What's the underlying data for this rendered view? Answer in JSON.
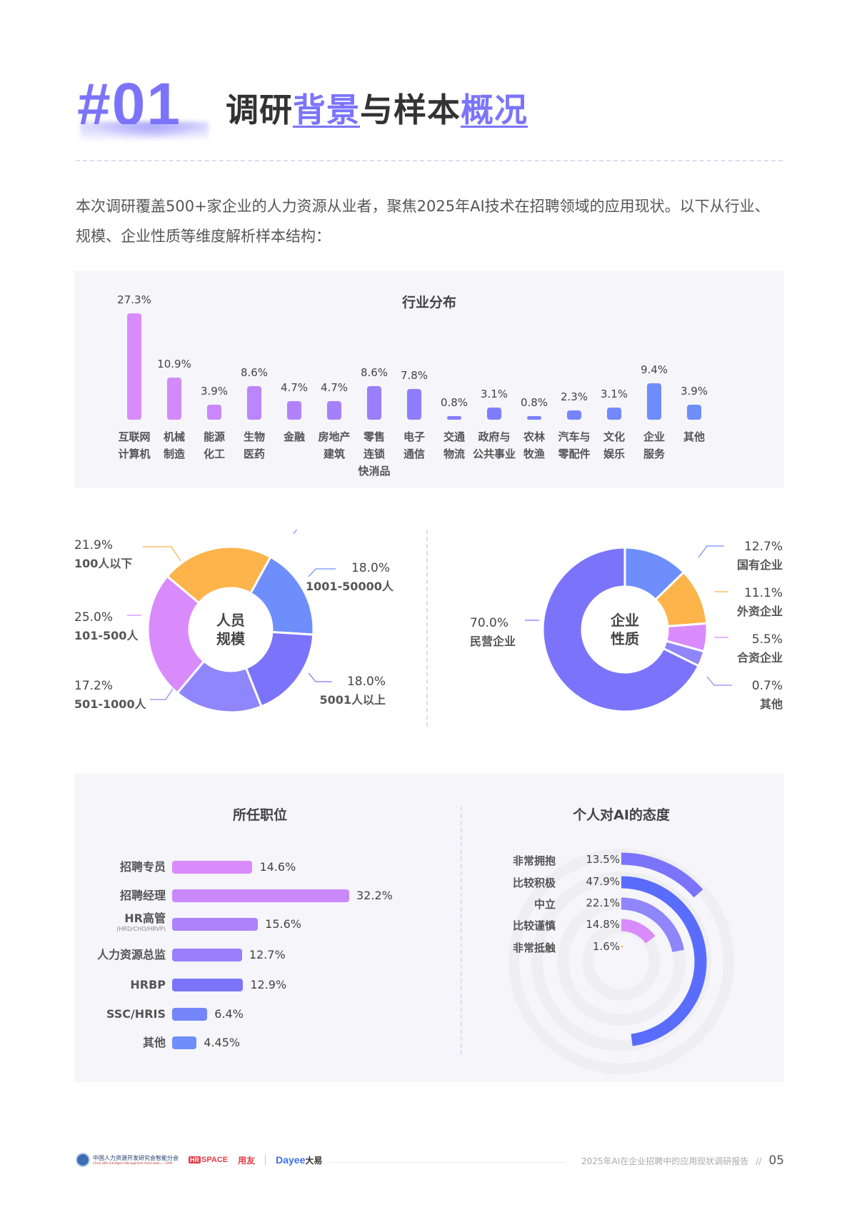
{
  "header": {
    "section_number": "#01",
    "title_parts": [
      "调研",
      "背景",
      "与样本",
      "概况"
    ]
  },
  "intro": "本次调研覆盖500+家企业的人力资源从业者，聚焦2025年AI技术在招聘领域的应用现状。以下从行业、规模、企业性质等维度解析样本结构：",
  "colors": {
    "accent": "#7b74fb",
    "pink": "#d98bfb",
    "orange": "#fdb44b",
    "blue": "#6e8ffb",
    "indigo": "#5a6cfb",
    "lavender": "#8f86fb",
    "panel_bg": "#f5f5fa"
  },
  "industry": {
    "title": "行业分布",
    "items": [
      {
        "label": "互联网\n计算机",
        "value": "27.3%"
      },
      {
        "label": "机械\n制造",
        "value": "10.9%"
      },
      {
        "label": "能源\n化工",
        "value": "3.9%"
      },
      {
        "label": "生物\n医药",
        "value": "8.6%"
      },
      {
        "label": "金融",
        "value": "4.7%"
      },
      {
        "label": "房地产\n建筑",
        "value": "4.7%"
      },
      {
        "label": "零售\n连锁\n快消品",
        "value": "8.6%"
      },
      {
        "label": "电子\n通信",
        "value": "7.8%"
      },
      {
        "label": "交通\n物流",
        "value": "0.8%"
      },
      {
        "label": "政府与\n公共事业",
        "value": "3.1%"
      },
      {
        "label": "农林\n牧渔",
        "value": "0.8%"
      },
      {
        "label": "汽车与\n零配件",
        "value": "2.3%"
      },
      {
        "label": "文化\n娱乐",
        "value": "3.1%"
      },
      {
        "label": "企业\n服务",
        "value": "9.4%"
      },
      {
        "label": "其他",
        "value": "3.9%"
      }
    ]
  },
  "staff_size": {
    "center": "人员\n规模",
    "items": [
      {
        "label": "100人以下",
        "value": "21.9%"
      },
      {
        "label": "1001-50000人",
        "value": "18.0%"
      },
      {
        "label": "5001人以上",
        "value": "18.0%"
      },
      {
        "label": "501-1000人",
        "value": "17.2%"
      },
      {
        "label": "101-500人",
        "value": "25.0%"
      }
    ]
  },
  "ownership": {
    "center": "企业\n性质",
    "items": [
      {
        "label": "国有企业",
        "value": "12.7%"
      },
      {
        "label": "外资企业",
        "value": "11.1%"
      },
      {
        "label": "合资企业",
        "value": "5.5%"
      },
      {
        "label": "其他",
        "value": "0.7%"
      },
      {
        "label": "民营企业",
        "value": "70.0%"
      }
    ]
  },
  "positions": {
    "title": "所任职位",
    "items": [
      {
        "label": "招聘专员",
        "sub": "",
        "value": "14.6%"
      },
      {
        "label": "招聘经理",
        "sub": "",
        "value": "32.2%"
      },
      {
        "label": "HR高管",
        "sub": "(HRD/CHO/HRVP)",
        "value": "15.6%"
      },
      {
        "label": "人力资源总监",
        "sub": "",
        "value": "12.7%"
      },
      {
        "label": "HRBP",
        "sub": "",
        "value": "12.9%"
      },
      {
        "label": "SSC/HRIS",
        "sub": "",
        "value": "6.4%"
      },
      {
        "label": "其他",
        "sub": "",
        "value": "4.45%"
      }
    ]
  },
  "attitude": {
    "title": "个人对AI的态度",
    "items": [
      {
        "label": "非常拥抱",
        "value": "13.5%"
      },
      {
        "label": "比较积极",
        "value": "47.9%"
      },
      {
        "label": "中立",
        "value": "22.1%"
      },
      {
        "label": "比较谨慎",
        "value": "14.8%"
      },
      {
        "label": "非常抵触",
        "value": "1.6%"
      }
    ]
  },
  "footer": {
    "logo_cima": "中国人力资源开发研究会智能分会",
    "logo_cima_en": "China (HR) Intelligent Management Association — CIMA",
    "logo_hrspace": "SPACE",
    "logo_hrspace_box": "HR",
    "logo_yonyou": "用友",
    "logo_dayee": "Dayee",
    "logo_dayee_cn": "大易",
    "report_title": "2025年AI在企业招聘中的应用现状调研报告",
    "separator": "//",
    "page": "05"
  },
  "chart_data": [
    {
      "type": "bar",
      "title": "行业分布",
      "categories": [
        "互联网计算机",
        "机械制造",
        "能源化工",
        "生物医药",
        "金融",
        "房地产建筑",
        "零售连锁快消品",
        "电子通信",
        "交通物流",
        "政府与公共事业",
        "农林牧渔",
        "汽车与零配件",
        "文化娱乐",
        "企业服务",
        "其他"
      ],
      "values": [
        27.3,
        10.9,
        3.9,
        8.6,
        4.7,
        4.7,
        8.6,
        7.8,
        0.8,
        3.1,
        0.8,
        2.3,
        3.1,
        9.4,
        3.9
      ],
      "unit": "%",
      "grid": false
    },
    {
      "type": "pie",
      "title": "人员规模",
      "categories": [
        "100人以下",
        "1001-50000人",
        "5001人以上",
        "501-1000人",
        "101-500人"
      ],
      "values": [
        21.9,
        18.0,
        18.0,
        17.2,
        25.0
      ],
      "unit": "%",
      "donut": true
    },
    {
      "type": "pie",
      "title": "企业性质",
      "categories": [
        "国有企业",
        "外资企业",
        "合资企业",
        "其他",
        "民营企业"
      ],
      "values": [
        12.7,
        11.1,
        5.5,
        0.7,
        70.0
      ],
      "unit": "%",
      "donut": true
    },
    {
      "type": "bar",
      "orientation": "horizontal",
      "title": "所任职位",
      "categories": [
        "招聘专员",
        "招聘经理",
        "HR高管(HRD/CHO/HRVP)",
        "人力资源总监",
        "HRBP",
        "SSC/HRIS",
        "其他"
      ],
      "values": [
        14.6,
        32.2,
        15.6,
        12.7,
        12.9,
        6.4,
        4.45
      ],
      "unit": "%"
    },
    {
      "type": "bar",
      "orientation": "radial",
      "title": "个人对AI的态度",
      "categories": [
        "非常拥抱",
        "比较积极",
        "中立",
        "比较谨慎",
        "非常抵触"
      ],
      "values": [
        13.5,
        47.9,
        22.1,
        14.8,
        1.6
      ],
      "unit": "%"
    }
  ]
}
